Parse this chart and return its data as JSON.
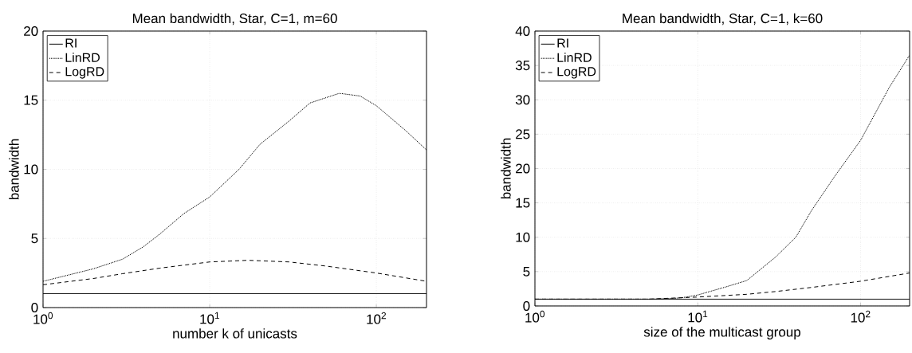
{
  "chart_data": [
    {
      "type": "line",
      "title": "Mean bandwidth, Star, C=1, m=60",
      "xlabel": "number k of unicasts",
      "ylabel": "bandwidth",
      "log": "x",
      "grid": true,
      "legend": "top left",
      "xlim": [
        1,
        200
      ],
      "ylim": [
        0,
        20
      ],
      "xticks": [
        {
          "value": 1,
          "label": "10$^{0}$"
        },
        {
          "value": 10,
          "label": "10$^{1}$"
        },
        {
          "value": 100,
          "label": "10$^{2}$"
        }
      ],
      "yticks": [
        0,
        5,
        10,
        15,
        20
      ],
      "series": [
        {
          "name": "RI",
          "color": "#000000",
          "line_style": "solid",
          "x": [
            1,
            200
          ],
          "values": [
            1,
            1
          ]
        },
        {
          "name": "LinRD",
          "color": "#000000",
          "line_style": "dotted",
          "x": [
            1,
            2,
            3,
            4,
            5,
            7,
            10,
            15,
            20,
            30,
            40,
            60,
            80,
            100,
            150,
            200
          ],
          "values": [
            1.9,
            2.8,
            3.5,
            4.4,
            5.3,
            6.8,
            8.0,
            10.0,
            11.8,
            13.5,
            14.8,
            15.5,
            15.3,
            14.6,
            12.8,
            11.4
          ]
        },
        {
          "name": "LogRD",
          "color": "#000000",
          "line_style": "dashed",
          "x": [
            1,
            2,
            3,
            5,
            10,
            17,
            30,
            50,
            100,
            200
          ],
          "values": [
            1.65,
            2.1,
            2.45,
            2.85,
            3.3,
            3.42,
            3.3,
            3.0,
            2.5,
            1.9
          ]
        }
      ]
    },
    {
      "type": "line",
      "title": "Mean bandwidth, Star, C=1, k=60",
      "xlabel": "size of the multicast group",
      "ylabel": "bandwidth",
      "log": "x",
      "grid": true,
      "legend": "top left",
      "xlim": [
        1,
        200
      ],
      "ylim": [
        0,
        40
      ],
      "xticks": [
        {
          "value": 1,
          "label": "10$^{0}$"
        },
        {
          "value": 10,
          "label": "10$^{1}$"
        },
        {
          "value": 100,
          "label": "10$^{2}$"
        }
      ],
      "yticks": [
        0,
        5,
        10,
        15,
        20,
        25,
        30,
        35,
        40
      ],
      "series": [
        {
          "name": "RI",
          "color": "#000000",
          "line_style": "solid",
          "x": [
            1,
            200
          ],
          "values": [
            1,
            1
          ]
        },
        {
          "name": "LinRD",
          "color": "#000000",
          "line_style": "dotted",
          "x": [
            1,
            3,
            5,
            7,
            8,
            10,
            15,
            20,
            30,
            40,
            50,
            70,
            100,
            150,
            200
          ],
          "values": [
            1,
            1,
            1,
            1.1,
            1.2,
            1.6,
            2.8,
            3.7,
            7.1,
            10,
            13.9,
            19,
            24.1,
            31.8,
            36.5
          ]
        },
        {
          "name": "LogRD",
          "color": "#000000",
          "line_style": "dashed",
          "x": [
            1,
            5,
            10,
            20,
            30,
            50,
            100,
            200
          ],
          "values": [
            1,
            1,
            1.3,
            1.7,
            2.1,
            2.7,
            3.6,
            4.8
          ]
        }
      ]
    }
  ]
}
